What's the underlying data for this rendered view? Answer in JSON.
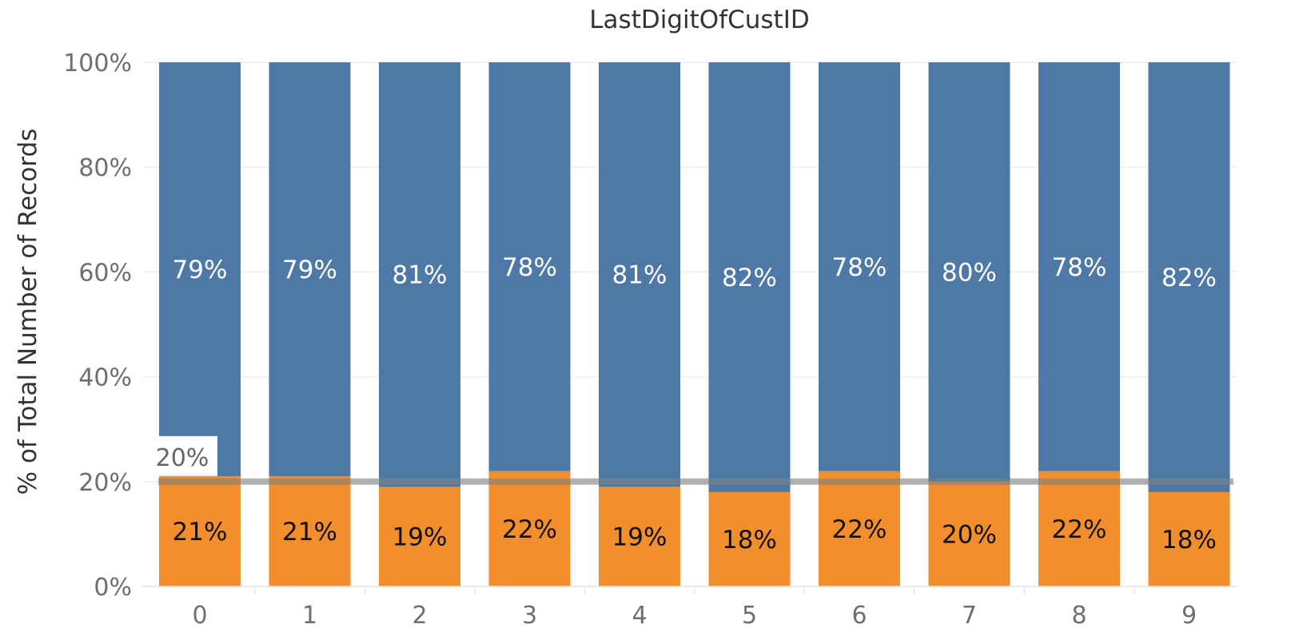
{
  "chart_data": {
    "type": "bar",
    "stacked": true,
    "title": "LastDigitOfCustID",
    "ylabel": "% of Total Number of Records",
    "xlabel": "",
    "categories": [
      "0",
      "1",
      "2",
      "3",
      "4",
      "5",
      "6",
      "7",
      "8",
      "9"
    ],
    "series": [
      {
        "color": "#f28e2b",
        "values": [
          21,
          21,
          19,
          22,
          19,
          18,
          22,
          20,
          22,
          18
        ],
        "labels": [
          "21%",
          "21%",
          "19%",
          "22%",
          "19%",
          "18%",
          "22%",
          "20%",
          "22%",
          "18%"
        ]
      },
      {
        "color": "#4e79a7",
        "values": [
          79,
          79,
          81,
          78,
          81,
          82,
          78,
          80,
          78,
          82
        ],
        "labels": [
          "79%",
          "79%",
          "81%",
          "78%",
          "81%",
          "82%",
          "78%",
          "80%",
          "78%",
          "82%"
        ]
      }
    ],
    "ylim": [
      0,
      100
    ],
    "yticks": [
      0,
      20,
      40,
      60,
      80,
      100
    ],
    "ytick_labels": [
      "0%",
      "20%",
      "40%",
      "60%",
      "80%",
      "100%"
    ],
    "reference_line": {
      "value": 20,
      "label": "20%",
      "color": "#7f7f7f"
    },
    "grid": true
  }
}
